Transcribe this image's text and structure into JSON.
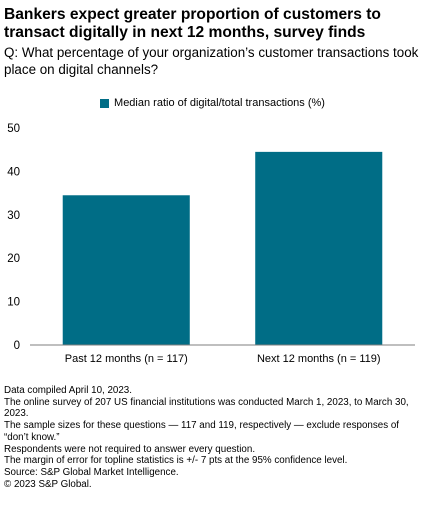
{
  "header": {
    "title": "Bankers expect greater proportion of customers to transact digitally in next 12 months, survey finds",
    "subtitle": "Q: What percentage of your organization’s customer transactions took place on digital channels?"
  },
  "colors": {
    "bar": "#006D86",
    "axis": "#7f7f7f",
    "text": "#000000"
  },
  "chart_data": {
    "type": "bar",
    "categories": [
      "Past 12 months (n = 117)",
      "Next 12 months (n = 119)"
    ],
    "series": [
      {
        "name": "Median ratio of digital/total transactions (%)",
        "values": [
          34.5,
          44.5
        ]
      }
    ],
    "ylim": [
      0,
      50
    ],
    "yticks": [
      0,
      10,
      20,
      30,
      40,
      50
    ],
    "grid": false,
    "legend_position": "top"
  },
  "footnotes": [
    "Data compiled April 10, 2023.",
    "The online survey of 207 US financial institutions was conducted March 1, 2023, to March 30, 2023.",
    "The sample sizes for these questions — 117 and 119, respectively — exclude responses of “don’t know.”",
    "Respondents were not required to answer every question.",
    "The margin of error for topline statistics is +/- 7 pts at the 95% confidence level.",
    "Source: S&P Global Market Intelligence.",
    "© 2023 S&P Global."
  ]
}
